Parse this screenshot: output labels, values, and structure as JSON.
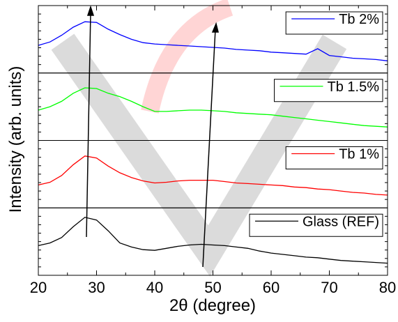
{
  "chart_data": {
    "type": "line",
    "xlabel": "2θ (degree)",
    "ylabel": "Intensity (arb. units)",
    "xlim": [
      20,
      80
    ],
    "xticks": [
      20,
      30,
      40,
      50,
      60,
      70,
      80
    ],
    "legend": "upper right",
    "x": [
      20,
      22,
      24,
      26,
      28,
      30,
      32,
      34,
      36,
      38,
      40,
      42,
      44,
      46,
      48,
      50,
      52,
      54,
      56,
      58,
      60,
      62,
      64,
      66,
      68,
      70,
      72,
      74,
      76,
      78,
      80
    ],
    "series": [
      {
        "name": "Tb 2%",
        "color": "#0000ff",
        "ylim": [
          0,
          100
        ],
        "values": [
          41,
          46,
          56,
          68,
          76,
          75,
          65,
          57,
          50,
          45,
          43,
          42,
          41,
          40,
          39,
          38,
          37,
          35,
          34,
          33,
          31,
          30,
          29,
          28,
          36,
          26,
          24,
          22,
          21,
          20,
          18
        ]
      },
      {
        "name": "Tb 1.5%",
        "color": "#00ff00",
        "ylim": [
          0,
          100
        ],
        "values": [
          45,
          50,
          58,
          70,
          78,
          77,
          70,
          65,
          58,
          50,
          43,
          43,
          44,
          45,
          45,
          44,
          43,
          41,
          40,
          39,
          38,
          36,
          34,
          32,
          30,
          28,
          26,
          24,
          22,
          21,
          20
        ]
      },
      {
        "name": "Tb 1%",
        "color": "#ff0000",
        "ylim": [
          0,
          100
        ],
        "values": [
          34,
          38,
          48,
          64,
          77,
          74,
          62,
          52,
          45,
          40,
          37,
          38,
          40,
          41,
          41,
          41,
          39,
          37,
          36,
          35,
          34,
          33,
          31,
          30,
          28,
          27,
          25,
          23,
          22,
          20,
          19
        ]
      },
      {
        "name": "Glass (REF)",
        "color": "#000000",
        "ylim": [
          0,
          100
        ],
        "values": [
          44,
          48,
          56,
          72,
          86,
          82,
          66,
          48,
          42,
          38,
          37,
          40,
          43,
          45,
          46,
          45,
          44,
          42,
          40,
          36,
          33,
          31,
          29,
          27,
          26,
          24,
          22,
          21,
          20,
          19,
          18
        ]
      }
    ]
  }
}
